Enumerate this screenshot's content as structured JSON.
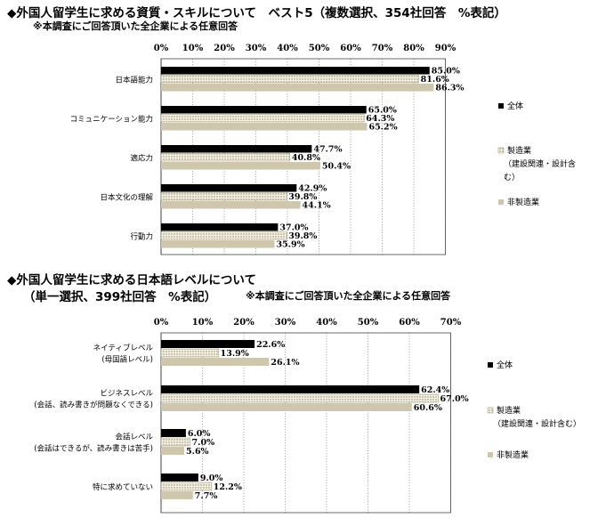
{
  "titles": {
    "chart1_title": "◆外国人留学生に求める資質・スキルについて　ベスト5（複数選択、354社回答　%表記）",
    "chart1_note": "※本調査にご回答頂いた全企業による任意回答",
    "chart2_title": "◆外国人留学生に求める日本語レベルについて",
    "chart2_subtitle": "（単一選択、399社回答　%表記）",
    "chart2_note": "※本調査にご回答頂いた全企業による任意回答"
  },
  "colors": {
    "all": "#000000",
    "manufacturing": "#e9e2cf",
    "non_manufacturing": "#cfc7ad",
    "axis": "#555555",
    "grid": "#777777"
  },
  "chart_data": [
    {
      "type": "bar",
      "orientation": "horizontal",
      "xlim": [
        0,
        90
      ],
      "ticks": [
        "0%",
        "10%",
        "20%",
        "30%",
        "40%",
        "50%",
        "60%",
        "70%",
        "80%",
        "90%"
      ],
      "categories": [
        [
          "日本語能力"
        ],
        [
          "コミュニケーション能力"
        ],
        [
          "適応力"
        ],
        [
          "日本文化の理解"
        ],
        [
          "行動力"
        ]
      ],
      "series": [
        {
          "name": "全体",
          "values": [
            85.0,
            65.0,
            47.7,
            42.9,
            37.0
          ],
          "labels": [
            "85.0%",
            "65.0%",
            "47.7%",
            "42.9%",
            "37.0%"
          ]
        },
        {
          "name": "製造業",
          "values": [
            81.6,
            64.3,
            40.8,
            39.8,
            39.8
          ],
          "labels": [
            "81.6%",
            "64.3%",
            "40.8%",
            "39.8%",
            "39.8%"
          ]
        },
        {
          "name": "非製造業",
          "values": [
            86.3,
            65.2,
            50.4,
            44.1,
            35.9
          ],
          "labels": [
            "86.3%",
            "65.2%",
            "50.4%",
            "44.1%",
            "35.9%"
          ]
        }
      ],
      "legend": [
        [
          "全体"
        ],
        [
          "製造業",
          "（建設関連・設計含",
          "む）"
        ],
        [
          "非製造業"
        ]
      ]
    },
    {
      "type": "bar",
      "orientation": "horizontal",
      "xlim": [
        0,
        70
      ],
      "ticks": [
        "0%",
        "10%",
        "20%",
        "30%",
        "40%",
        "50%",
        "60%",
        "70%"
      ],
      "categories": [
        [
          "ネイティブレベル",
          "(母国語レベル)"
        ],
        [
          "ビジネスレベル",
          "(会話、読み書きが問題なくできる)"
        ],
        [
          "会話レベル",
          "(会話はできるが、読み書きは苦手)"
        ],
        [
          "特に求めていない"
        ]
      ],
      "series": [
        {
          "name": "全体",
          "values": [
            22.6,
            62.4,
            6.0,
            9.0
          ],
          "labels": [
            "22.6%",
            "62.4%",
            "6.0%",
            "9.0%"
          ]
        },
        {
          "name": "製造業",
          "values": [
            13.9,
            67.0,
            7.0,
            12.2
          ],
          "labels": [
            "13.9%",
            "67.0%",
            "7.0%",
            "12.2%"
          ]
        },
        {
          "name": "非製造業",
          "values": [
            26.1,
            60.6,
            5.6,
            7.7
          ],
          "labels": [
            "26.1%",
            "60.6%",
            "5.6%",
            "7.7%"
          ]
        }
      ],
      "legend": [
        [
          "全体"
        ],
        [
          "製造業",
          "（建設関連・設計含む）"
        ],
        [
          "非製造業"
        ]
      ]
    }
  ]
}
